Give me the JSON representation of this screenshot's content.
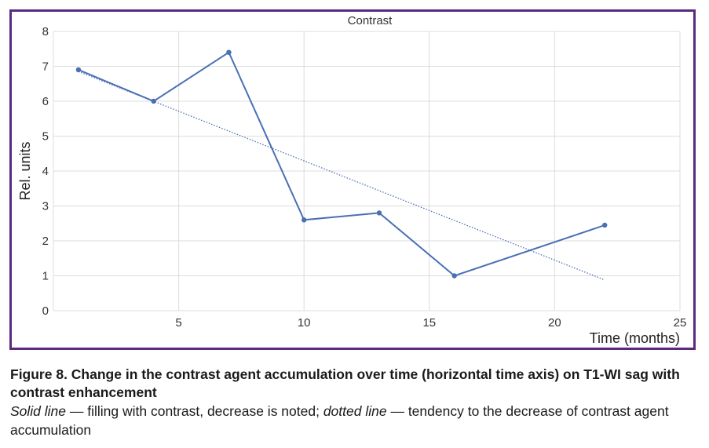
{
  "colors": {
    "frame": "#5b2a7e",
    "series": "#4a6fb5",
    "grid": "#dcdcdc"
  },
  "chart_data": {
    "type": "line",
    "title": "Contrast",
    "xlabel": "Time (months)",
    "ylabel": "Rel. units",
    "xlim": [
      0,
      25
    ],
    "ylim": [
      0,
      8
    ],
    "xticks": [
      5,
      10,
      15,
      20,
      25
    ],
    "yticks": [
      0,
      1,
      2,
      3,
      4,
      5,
      6,
      7,
      8
    ],
    "grid": true,
    "series": [
      {
        "style": "solid",
        "x": [
          1,
          4,
          7,
          10,
          13,
          16,
          22
        ],
        "y": [
          6.9,
          6.0,
          7.4,
          2.6,
          2.8,
          1.0,
          2.45
        ]
      },
      {
        "style": "dotted",
        "x": [
          1,
          22
        ],
        "y": [
          6.85,
          0.88
        ]
      }
    ]
  },
  "caption": {
    "title": "Figure 8. Change in the contrast agent accumulation over time (horizontal time axis) on T1-WI sag with contrast enhancement",
    "solid_label": "Solid line",
    "solid_text": " — filling with contrast, decrease is noted; ",
    "dotted_label": "dotted line",
    "dotted_text": " — tendency to the decrease of contrast agent accumulation"
  }
}
